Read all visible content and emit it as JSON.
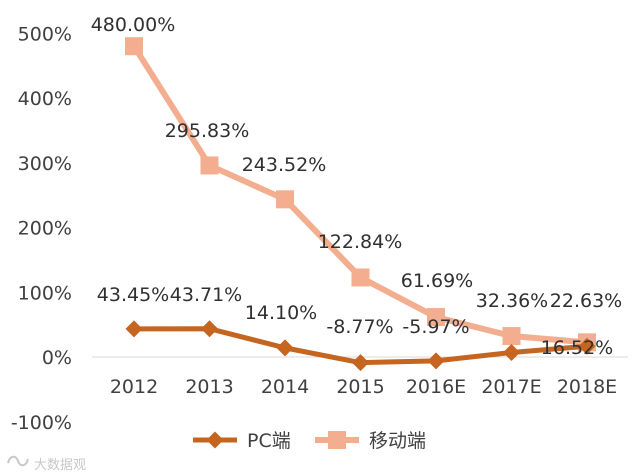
{
  "chart_data": {
    "type": "line",
    "categories": [
      "2012",
      "2013",
      "2014",
      "2015",
      "2016E",
      "2017E",
      "2018E"
    ],
    "ylim": [
      -100,
      500
    ],
    "y_ticks": [
      "-100%",
      "0%",
      "100%",
      "200%",
      "300%",
      "400%",
      "500%"
    ],
    "grid": false,
    "legend_position": "bottom",
    "series": [
      {
        "name": "PC端",
        "color": "#C5651F",
        "marker": "diamond",
        "values": [
          43.45,
          43.71,
          14.1,
          -8.77,
          -5.97,
          7.0,
          16.52
        ],
        "labels": [
          "43.45%",
          "43.71%",
          "14.10%",
          "-8.77%",
          "-5.97%",
          "",
          "16.52%"
        ]
      },
      {
        "name": "移动端",
        "color": "#F2AE8E",
        "marker": "square",
        "values": [
          480.0,
          295.83,
          243.52,
          122.84,
          61.69,
          32.36,
          22.63
        ],
        "labels": [
          "480.00%",
          "295.83%",
          "243.52%",
          "122.84%",
          "61.69%",
          "32.36%",
          "22.63%"
        ]
      }
    ]
  },
  "watermark": "大数据观"
}
